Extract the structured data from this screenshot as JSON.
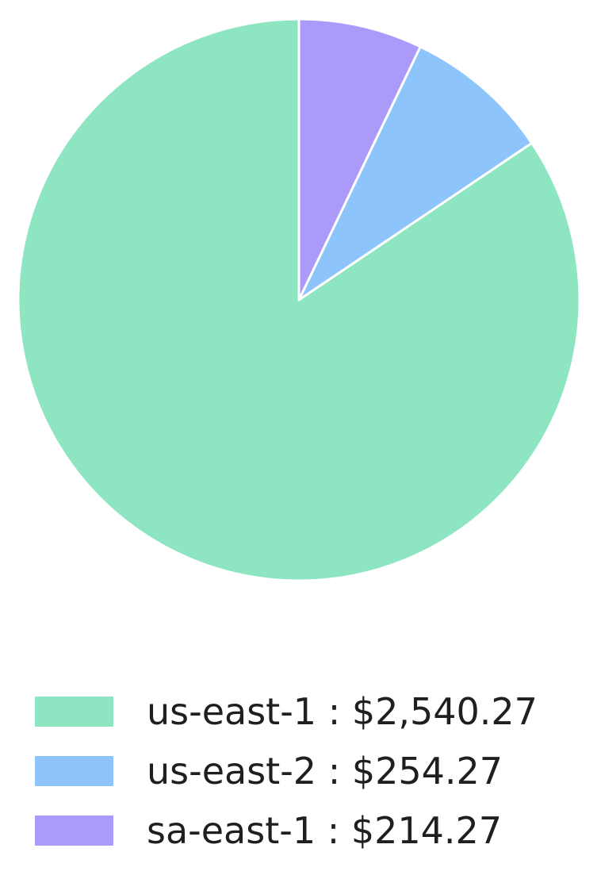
{
  "chart_data": {
    "type": "pie",
    "title": "",
    "labels": [
      "us-east-1",
      "us-east-2",
      "sa-east-1"
    ],
    "values": [
      2540.27,
      254.27,
      214.27
    ],
    "display_values": [
      "$2,540.27",
      "$254.27",
      "$214.27"
    ],
    "percentages": [
      84.4,
      8.5,
      7.1
    ],
    "colors": [
      "#8EE5C2",
      "#8CC4FB",
      "#AC9AFB"
    ],
    "wedge_edge_color": "#ffffff",
    "start_angle": 90,
    "direction": "counterclockwise",
    "legend": {
      "position": "bottom-left",
      "separator": " : ",
      "entries": [
        {
          "label": "us-east-1",
          "value": "$2,540.27",
          "display": "us-east-1 : $2,540.27"
        },
        {
          "label": "us-east-2",
          "value": "$254.27",
          "display": "us-east-2 : $254.27"
        },
        {
          "label": "sa-east-1",
          "value": "$214.27",
          "display": "sa-east-1 : $214.27"
        }
      ]
    }
  }
}
